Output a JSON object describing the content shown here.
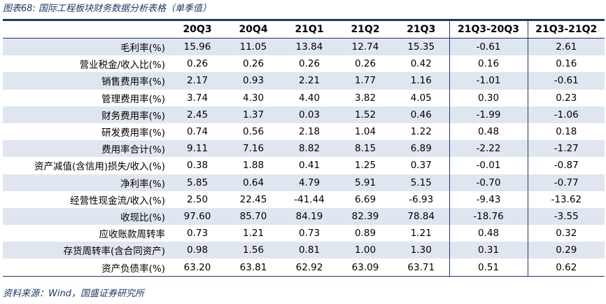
{
  "title": "图表68:  国际工程板块财务数据分析表格（单季值）",
  "columns": [
    "",
    "20Q3",
    "20Q4",
    "21Q1",
    "21Q2",
    "21Q3",
    "21Q3-20Q3",
    "21Q3-21Q2"
  ],
  "rows": [
    {
      "label": "毛利率(%)",
      "values": [
        "15.96",
        "11.05",
        "13.84",
        "12.74",
        "15.35",
        "-0.61",
        "2.61"
      ]
    },
    {
      "label": "营业税金/收入比(%)",
      "values": [
        "0.26",
        "0.26",
        "0.26",
        "0.26",
        "0.42",
        "0.16",
        "0.16"
      ]
    },
    {
      "label": "销售费用率(%)",
      "values": [
        "2.17",
        "0.93",
        "2.21",
        "1.77",
        "1.16",
        "-1.01",
        "-0.61"
      ]
    },
    {
      "label": "管理费用率(%)",
      "values": [
        "3.74",
        "4.30",
        "4.40",
        "3.82",
        "4.05",
        "0.30",
        "0.23"
      ]
    },
    {
      "label": "财务费用率(%)",
      "values": [
        "2.45",
        "1.37",
        "0.03",
        "1.52",
        "0.46",
        "-1.99",
        "-1.06"
      ]
    },
    {
      "label": "研发费用率(%)",
      "values": [
        "0.74",
        "0.56",
        "2.18",
        "1.04",
        "1.22",
        "0.48",
        "0.18"
      ]
    },
    {
      "label": "费用率合计(%)",
      "values": [
        "9.11",
        "7.16",
        "8.82",
        "8.15",
        "6.89",
        "-2.22",
        "-1.27"
      ]
    },
    {
      "label": "资产减值(含信用)损失/收入(%)",
      "values": [
        "0.38",
        "1.88",
        "0.41",
        "1.25",
        "0.37",
        "-0.01",
        "-0.87"
      ]
    },
    {
      "label": "净利率(%)",
      "values": [
        "5.85",
        "0.64",
        "4.79",
        "5.91",
        "5.15",
        "-0.70",
        "-0.77"
      ]
    },
    {
      "label": "经营性现金流/收入(%)",
      "values": [
        "2.50",
        "22.45",
        "-41.44",
        "6.69",
        "-6.93",
        "-9.43",
        "-13.62"
      ]
    },
    {
      "label": "收现比(%)",
      "values": [
        "97.60",
        "85.70",
        "84.19",
        "82.39",
        "78.84",
        "-18.76",
        "-3.55"
      ]
    },
    {
      "label": "应收账款周转率",
      "values": [
        "0.73",
        "1.21",
        "0.73",
        "0.89",
        "1.21",
        "0.48",
        "0.32"
      ]
    },
    {
      "label": "存货周转率(含合同资产)",
      "values": [
        "0.98",
        "1.56",
        "0.81",
        "1.00",
        "1.30",
        "0.31",
        "0.29"
      ]
    },
    {
      "label": "资产负债率(%)",
      "values": [
        "63.20",
        "63.81",
        "62.92",
        "63.09",
        "63.71",
        "0.51",
        "0.62"
      ]
    }
  ],
  "source": "资料来源：Wind，国盛证券研究所"
}
